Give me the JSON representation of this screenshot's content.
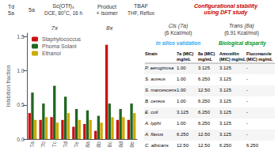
{
  "chart_data": {
    "type": "bar",
    "categories": [
      "7a",
      "7b",
      "7c",
      "7d",
      "7e",
      "8a",
      "8b",
      "8c",
      "8d",
      "8e"
    ],
    "series": [
      {
        "name": "Staphylococcus",
        "color": "#cc1111",
        "values": [
          0.38,
          0.28,
          0.32,
          0.28,
          0.18,
          0.22,
          0.12,
          1.38,
          0.28,
          0.28
        ]
      },
      {
        "name": "Phoma Solani",
        "color": "#226622",
        "values": [
          0.68,
          0.52,
          0.78,
          0.62,
          0.44,
          0.42,
          0.34,
          0.52,
          0.44,
          0.52
        ]
      },
      {
        "name": "Ethanol",
        "color": "#ccaa00",
        "values": [
          0.28,
          0.32,
          0.24,
          0.38,
          0.28,
          0.28,
          0.24,
          0.32,
          0.32,
          0.38
        ]
      }
    ],
    "ylabel": "Inhibition fraction",
    "ylim": [
      0,
      1.55
    ],
    "yticks": [
      {
        "value": 0,
        "label": "0.0"
      },
      0.5,
      {
        "value": 1,
        "label": "1.0"
      },
      1.5
    ],
    "grid": false,
    "legend": "upper left",
    "annotations": [
      {
        "text": "7x"
      },
      {
        "text": "8x"
      },
      {
        "text": "Td\n5a"
      },
      {
        "text": "5a"
      },
      {
        "text": "Sc(OTf)₃"
      },
      {
        "text": "DCE, 80°C, 16 h"
      },
      {
        "text": "Product\n+ isomer"
      },
      {
        "text": "TBAF"
      },
      {
        "text": "THF, Reflux"
      },
      {
        "text": "Configurational stability\nusing DFT study",
        "color": "#cc0000"
      },
      {
        "text": "Biological disparity",
        "color": "#009933"
      },
      {
        "text": "In silico validation",
        "color": "#33aaee"
      },
      {
        "text": "Cis (7a)"
      },
      {
        "text": "(6 Kcal/mol)"
      },
      {
        "text": "Trans (8a)"
      },
      {
        "text": "(6.91 Kcal/mol)"
      }
    ],
    "table": {
      "columns": [
        "Strain",
        "7a (MIC)\nmg/mL",
        "8a (MIC)\nmg/mL",
        "Amoxillin\n(MIC) mg/mL",
        "Fluconazole\n(MIC) mg/mL"
      ],
      "rows": [
        [
          "P. aeruginosa",
          "1.00",
          "3.125",
          "3.125",
          "-"
        ],
        [
          "S. aureus",
          "1.00",
          "6.250",
          "3.125",
          "-"
        ],
        [
          "S. marcescens",
          "1.00",
          "12.50",
          "3.125",
          "-"
        ],
        [
          "B. cereus",
          "1.00",
          "6.250",
          "3.125",
          "-"
        ],
        [
          "E. coli",
          "3.125",
          "6.250",
          "3.125",
          "-"
        ],
        [
          "A. typhi",
          "1.00",
          "6.250",
          "3.125",
          "-"
        ],
        [
          "A. flavus",
          "6.250",
          "12.50",
          "3.125",
          "-"
        ],
        [
          "C. albicans",
          "12.50",
          "12.50",
          "6.250",
          "6.250"
        ]
      ]
    }
  }
}
